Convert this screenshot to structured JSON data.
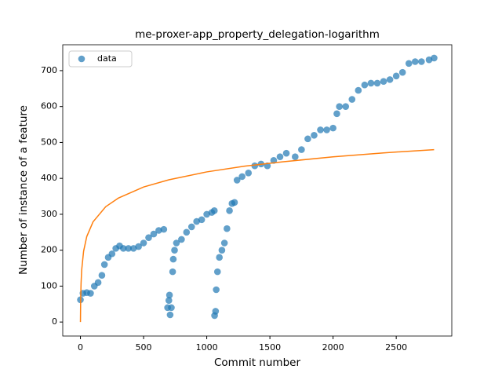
{
  "chart_data": {
    "type": "scatter",
    "title": "me-proxer-app_property_delegation-logarithm",
    "x_label": "Commit number",
    "y_label": "Number of instance of a feature",
    "xlim": [
      -140,
      2940
    ],
    "ylim": [
      -39,
      772
    ],
    "xticks": [
      0,
      500,
      1000,
      1500,
      2000,
      2500
    ],
    "yticks": [
      0,
      100,
      200,
      300,
      400,
      500,
      600,
      700
    ],
    "legend": "upper left",
    "series": [
      {
        "name": "data",
        "color": "#1f77b4",
        "style": "marker",
        "x": [
          0,
          20,
          50,
          80,
          110,
          140,
          170,
          190,
          220,
          250,
          280,
          310,
          340,
          380,
          420,
          460,
          500,
          540,
          580,
          620,
          660,
          690,
          700,
          705,
          710,
          720,
          730,
          735,
          745,
          760,
          800,
          840,
          880,
          920,
          960,
          1000,
          1040,
          1060,
          1062,
          1070,
          1075,
          1085,
          1100,
          1120,
          1140,
          1160,
          1180,
          1200,
          1220,
          1240,
          1280,
          1330,
          1380,
          1430,
          1480,
          1530,
          1580,
          1630,
          1700,
          1750,
          1800,
          1850,
          1900,
          1950,
          2000,
          2030,
          2050,
          2100,
          2150,
          2200,
          2250,
          2300,
          2350,
          2400,
          2450,
          2500,
          2550,
          2600,
          2650,
          2700,
          2760,
          2800
        ],
        "values": [
          62,
          80,
          82,
          80,
          100,
          110,
          130,
          160,
          180,
          190,
          205,
          212,
          205,
          205,
          205,
          210,
          220,
          235,
          245,
          255,
          258,
          40,
          60,
          75,
          20,
          40,
          140,
          175,
          200,
          220,
          230,
          250,
          265,
          280,
          285,
          300,
          305,
          310,
          18,
          30,
          90,
          140,
          180,
          200,
          220,
          260,
          310,
          330,
          333,
          395,
          405,
          415,
          435,
          440,
          435,
          450,
          460,
          470,
          460,
          480,
          510,
          520,
          535,
          535,
          540,
          580,
          600,
          600,
          620,
          645,
          660,
          665,
          665,
          670,
          675,
          685,
          695,
          720,
          725,
          725,
          730,
          735
        ]
      },
      {
        "color": "#ff7f0e",
        "style": "line",
        "x": [
          0,
          2,
          5,
          10,
          25,
          50,
          100,
          200,
          300,
          500,
          700,
          1000,
          1300,
          1600,
          2000,
          2400,
          2800
        ],
        "values": [
          0,
          66.5,
          108,
          145,
          197,
          238,
          279,
          321,
          345,
          376,
          396,
          418,
          434,
          446,
          460,
          471,
          480
        ]
      }
    ]
  }
}
